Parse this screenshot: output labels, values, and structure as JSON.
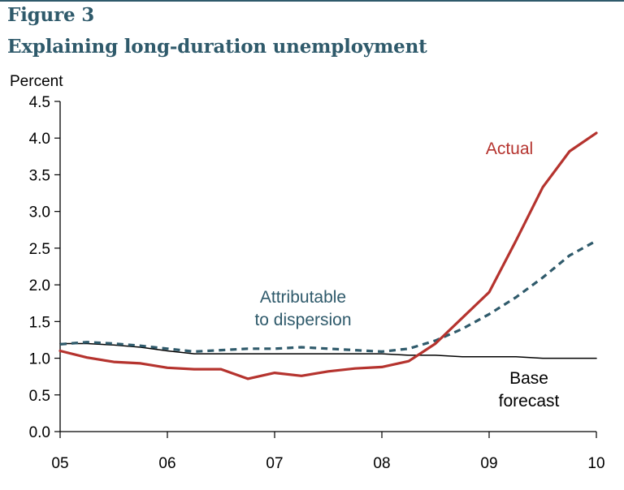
{
  "figure": {
    "label": "Figure 3",
    "title": "Explaining long-duration unemployment"
  },
  "chart_data": {
    "type": "line",
    "ylabel": "Percent",
    "xlabel": "",
    "xlim": [
      2005.0,
      2010.0
    ],
    "ylim": [
      0.0,
      4.5
    ],
    "yticks": [
      0.0,
      0.5,
      1.0,
      1.5,
      2.0,
      2.5,
      3.0,
      3.5,
      4.0,
      4.5
    ],
    "yticklabels": [
      "0.0",
      "0.5",
      "1.0",
      "1.5",
      "2.0",
      "2.5",
      "3.0",
      "3.5",
      "4.0",
      "4.5"
    ],
    "xticks": [
      2005,
      2006,
      2007,
      2008,
      2009,
      2010
    ],
    "xticklabels": [
      "05",
      "06",
      "07",
      "08",
      "09",
      "10"
    ],
    "grid": false,
    "series": [
      {
        "name": "Actual",
        "color": "#b5332e",
        "style": "solid",
        "x": [
          2005.0,
          2005.25,
          2005.5,
          2005.75,
          2006.0,
          2006.25,
          2006.5,
          2006.75,
          2007.0,
          2007.25,
          2007.5,
          2007.75,
          2008.0,
          2008.25,
          2008.5,
          2008.75,
          2009.0,
          2009.25,
          2009.5,
          2009.75,
          2010.0
        ],
        "y": [
          1.1,
          1.01,
          0.95,
          0.93,
          0.87,
          0.85,
          0.85,
          0.72,
          0.8,
          0.76,
          0.82,
          0.86,
          0.88,
          0.96,
          1.2,
          1.55,
          1.9,
          2.6,
          3.33,
          3.82,
          4.07
        ]
      },
      {
        "name": "Attributable to dispersion",
        "color": "#2f5a6b",
        "style": "dashed",
        "x": [
          2005.0,
          2005.25,
          2005.5,
          2005.75,
          2006.0,
          2006.25,
          2006.5,
          2006.75,
          2007.0,
          2007.25,
          2007.5,
          2007.75,
          2008.0,
          2008.25,
          2008.5,
          2008.75,
          2009.0,
          2009.25,
          2009.5,
          2009.75,
          2010.0
        ],
        "y": [
          1.19,
          1.22,
          1.2,
          1.17,
          1.13,
          1.09,
          1.11,
          1.13,
          1.13,
          1.15,
          1.13,
          1.11,
          1.09,
          1.13,
          1.24,
          1.4,
          1.6,
          1.83,
          2.1,
          2.4,
          2.6
        ]
      },
      {
        "name": "Base forecast",
        "color": "#000000",
        "style": "solid",
        "x": [
          2005.0,
          2005.25,
          2005.5,
          2005.75,
          2006.0,
          2006.25,
          2006.5,
          2006.75,
          2007.0,
          2007.25,
          2007.5,
          2007.75,
          2008.0,
          2008.25,
          2008.5,
          2008.75,
          2009.0,
          2009.25,
          2009.5,
          2009.75,
          2010.0
        ],
        "y": [
          1.2,
          1.2,
          1.18,
          1.15,
          1.1,
          1.06,
          1.06,
          1.06,
          1.06,
          1.06,
          1.06,
          1.06,
          1.06,
          1.04,
          1.04,
          1.02,
          1.02,
          1.02,
          1.0,
          1.0,
          1.0
        ]
      }
    ],
    "annotations": [
      {
        "series": 0,
        "lines": [
          "Actual"
        ],
        "color": "#b5332e"
      },
      {
        "series": 1,
        "lines": [
          "Attributable",
          "to dispersion"
        ],
        "color": "#2f5a6b"
      },
      {
        "series": 2,
        "lines": [
          "Base",
          "forecast"
        ],
        "color": "#000000"
      }
    ]
  }
}
